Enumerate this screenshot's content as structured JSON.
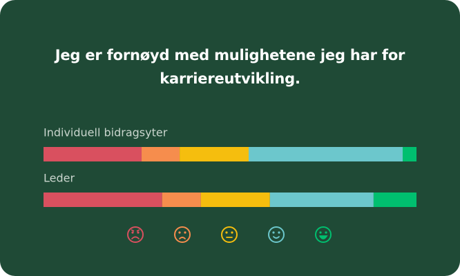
{
  "chart_data": {
    "type": "stacked-bar-horizontal",
    "title": "Jeg er fornøyd med mulighetene jeg har for karriereutvikling.",
    "categories": [
      "Individuell bidragsyter",
      "Leder"
    ],
    "xlim": [
      0,
      100
    ],
    "series": [
      {
        "color": "#d9505f",
        "values": [
          26.3,
          31.8
        ]
      },
      {
        "color": "#f68d4d",
        "values": [
          10.2,
          10.4
        ]
      },
      {
        "color": "#f5be0e",
        "values": [
          18.5,
          18.5
        ]
      },
      {
        "color": "#6cc7cc",
        "values": [
          41.3,
          27.8
        ]
      },
      {
        "color": "#00bf6f",
        "values": [
          3.7,
          11.5
        ]
      }
    ]
  }
}
